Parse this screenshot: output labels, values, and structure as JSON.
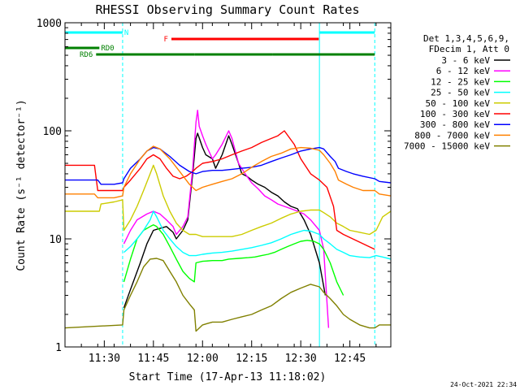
{
  "chart_data": {
    "type": "line",
    "title": "RHESSI Observing Summary Count Rates",
    "xlabel": "Start Time (17-Apr-13 11:18:02)",
    "ylabel": "Count Rate (s⁻¹ detector⁻¹)",
    "y_scale": "log",
    "ylim": [
      1,
      1000
    ],
    "y_ticks": [
      1,
      10,
      100,
      1000
    ],
    "y_tick_labels": [
      "1",
      "10",
      "100",
      "1000"
    ],
    "x_unit": "minutes since 11:18:02",
    "xlim": [
      0,
      99.5
    ],
    "x_ticks": [
      12,
      27,
      42,
      57,
      72,
      87
    ],
    "x_tick_labels": [
      "11:30",
      "11:45",
      "12:00",
      "12:15",
      "12:30",
      "12:45"
    ],
    "legend_location": "right",
    "legend_header": [
      "Det 1,3,4,5,6,9,",
      "FDecim 1, Att 0"
    ],
    "timestamp": "24-Oct-2021 22:34",
    "background_windows": [
      [
        0,
        17.6
      ],
      [
        77.7,
        94.6
      ]
    ],
    "flags": [
      {
        "label": "N",
        "color": "#00ffff",
        "segments": [
          [
            0,
            17.6
          ],
          [
            77.7,
            94.6
          ]
        ]
      },
      {
        "label": "F",
        "color": "#ff0000",
        "segments": [
          [
            32.5,
            77.5
          ]
        ]
      },
      {
        "label": "RD0",
        "color": "#008000",
        "segments": [
          [
            0,
            10.5
          ]
        ]
      },
      {
        "label": "RD6",
        "color": "#008000",
        "segments": [
          [
            9.5,
            39.5
          ],
          [
            39.5,
            63.5
          ],
          [
            63.5,
            84
          ],
          [
            84,
            94.6
          ]
        ]
      }
    ],
    "series": [
      {
        "name": "3 - 6 keV",
        "color": "#000000",
        "x": [
          0,
          17.6,
          18,
          20,
          23,
          25,
          27,
          29,
          31,
          33,
          34,
          36,
          37.5,
          39,
          40,
          40.5,
          42,
          43,
          45,
          46,
          48,
          50,
          51,
          53,
          54,
          55.5,
          57,
          59,
          61,
          63,
          65,
          67,
          69,
          71,
          73,
          75,
          77.7,
          79.5
        ],
        "y": [
          null,
          null,
          2.3,
          3.4,
          6,
          9,
          12,
          12.5,
          13,
          11.5,
          10,
          12,
          15,
          40,
          85,
          95,
          70,
          60,
          55,
          45,
          60,
          90,
          75,
          50,
          40,
          38,
          35,
          32,
          30,
          27,
          25,
          22,
          20,
          19,
          15,
          11,
          6,
          3
        ]
      },
      {
        "name": "6 - 12 keV",
        "color": "#ff00ff",
        "x": [
          0,
          17.6,
          18,
          20,
          22,
          25,
          27,
          29,
          31,
          33,
          34,
          36,
          37.5,
          39,
          40,
          40.5,
          41,
          42,
          43,
          45,
          46,
          48,
          50,
          51,
          53,
          55,
          57,
          59,
          61,
          63,
          65,
          67,
          69,
          71,
          73,
          75,
          77.7,
          79,
          80.5,
          94.6
        ],
        "y": [
          null,
          null,
          9,
          12,
          15,
          17,
          18,
          17,
          15,
          13,
          11,
          13,
          16,
          45,
          120,
          155,
          110,
          90,
          75,
          55,
          60,
          75,
          100,
          85,
          50,
          40,
          33,
          29,
          25,
          23,
          21,
          20,
          19,
          18,
          17,
          15,
          12,
          8,
          1.5,
          null
        ]
      },
      {
        "name": "12 - 25 keV",
        "color": "#00ff00",
        "x": [
          0,
          17.6,
          18,
          20,
          22,
          24,
          26,
          27,
          28,
          30,
          32,
          34,
          36,
          38,
          39.5,
          40,
          42,
          45,
          48,
          50,
          53,
          56,
          58,
          60,
          62,
          64,
          66,
          68,
          70,
          72,
          74,
          76,
          77.7,
          79,
          81,
          83,
          85,
          94.6
        ],
        "y": [
          null,
          null,
          4,
          6.5,
          10,
          12,
          13,
          13.5,
          13,
          11,
          8.5,
          6.5,
          5,
          4.3,
          4,
          6,
          6.2,
          6.3,
          6.3,
          6.5,
          6.6,
          6.7,
          6.8,
          7,
          7.2,
          7.5,
          8,
          8.5,
          9,
          9.5,
          9.7,
          9.5,
          9,
          8,
          6,
          4,
          3,
          null
        ]
      },
      {
        "name": "25 - 50 keV",
        "color": "#00ffff",
        "x": [
          0,
          17.6,
          18,
          20,
          22,
          24,
          26,
          27,
          28,
          30,
          32,
          34,
          36,
          38,
          40,
          42,
          45,
          48,
          51,
          54,
          57,
          60,
          63,
          66,
          69,
          71,
          73,
          75,
          77.7,
          79,
          81,
          83,
          85,
          87,
          90,
          93,
          95,
          97,
          99.5
        ],
        "y": [
          null,
          null,
          7.5,
          8.5,
          10,
          12,
          15,
          18,
          16,
          12,
          10,
          8.5,
          7.5,
          7,
          7,
          7.2,
          7.4,
          7.5,
          7.7,
          8,
          8.3,
          8.7,
          9.2,
          10,
          11,
          11.5,
          12,
          11.8,
          11,
          10,
          9,
          8,
          7.5,
          7,
          6.8,
          6.7,
          7,
          6.8,
          6.5
        ]
      },
      {
        "name": "50 - 100 keV",
        "color": "#cccc00",
        "x": [
          0,
          10.5,
          11,
          15,
          17.6,
          18,
          20,
          22,
          24,
          26,
          27,
          28,
          30,
          32,
          34,
          36,
          38,
          40,
          42,
          45,
          48,
          51,
          54,
          57,
          60,
          63,
          66,
          69,
          72,
          75,
          77.7,
          79,
          81,
          83,
          85,
          87,
          90,
          93,
          95,
          97,
          99.5
        ],
        "y": [
          18,
          18,
          21,
          22,
          23,
          12,
          15,
          20,
          28,
          40,
          48,
          40,
          25,
          18,
          14,
          12,
          11,
          11,
          10.5,
          10.5,
          10.5,
          10.5,
          11,
          12,
          13,
          14,
          15.5,
          17,
          18,
          18.5,
          18.5,
          17.5,
          16,
          14,
          13,
          12,
          11.5,
          11,
          12,
          16,
          18
        ]
      },
      {
        "name": "100 - 300 keV",
        "color": "#ff0000",
        "x": [
          0,
          9,
          10,
          15,
          17.6,
          18,
          20,
          23,
          25,
          27,
          29,
          31,
          33,
          35,
          37,
          39,
          40,
          42,
          45,
          48,
          51,
          54,
          57,
          60,
          63,
          65,
          67,
          70,
          72,
          75,
          77.7,
          80,
          82,
          83,
          85,
          94.6
        ],
        "y": [
          48,
          48,
          28,
          28,
          28,
          30,
          35,
          45,
          55,
          60,
          55,
          45,
          38,
          36,
          38,
          42,
          45,
          50,
          52,
          55,
          60,
          65,
          70,
          78,
          85,
          90,
          100,
          75,
          55,
          40,
          35,
          30,
          20,
          12,
          11,
          8
        ]
      },
      {
        "name": "300 - 800 keV",
        "color": "#0000ff",
        "x": [
          0,
          10,
          11,
          15,
          17.6,
          18,
          20,
          23,
          25,
          27,
          29,
          32,
          35,
          38,
          40,
          42,
          45,
          48,
          51,
          54,
          57,
          60,
          63,
          66,
          69,
          72,
          75,
          77.7,
          79,
          81,
          82.5,
          83.5,
          86,
          88,
          91,
          94.6,
          96,
          99.5
        ],
        "y": [
          35,
          35,
          32,
          32,
          33,
          36,
          45,
          55,
          65,
          70,
          68,
          58,
          48,
          42,
          40,
          42,
          43,
          43,
          44,
          45,
          46,
          48,
          52,
          56,
          60,
          65,
          68,
          70,
          68,
          58,
          52,
          45,
          42,
          40,
          38,
          36,
          34,
          33
        ]
      },
      {
        "name": "800 - 7000 keV",
        "color": "#ff8000",
        "x": [
          0,
          9,
          10,
          15,
          17.6,
          18,
          20,
          23,
          25,
          27,
          29,
          32,
          35,
          38,
          40,
          42,
          45,
          48,
          51,
          54,
          57,
          60,
          63,
          66,
          69,
          72,
          75,
          77.7,
          79,
          81,
          82.5,
          83.5,
          86,
          88,
          91,
          94.6,
          96,
          99.5
        ],
        "y": [
          26,
          26,
          24,
          24,
          25,
          30,
          40,
          55,
          65,
          72,
          68,
          55,
          42,
          32,
          28,
          30,
          32,
          34,
          36,
          40,
          46,
          52,
          58,
          62,
          68,
          70,
          69,
          66,
          60,
          50,
          42,
          35,
          32,
          30,
          28,
          28,
          26,
          25
        ]
      },
      {
        "name": "7000 - 15000 keV",
        "color": "#808000",
        "x": [
          0,
          17.6,
          18,
          20,
          22,
          24,
          26,
          28,
          30,
          32,
          34,
          36,
          38,
          39.5,
          40,
          42,
          45,
          48,
          51,
          54,
          57,
          60,
          63,
          66,
          69,
          72,
          75,
          77.7,
          79,
          81,
          83,
          85,
          87,
          90,
          93,
          94.6,
          96,
          99.5
        ],
        "y": [
          1.5,
          1.6,
          2.2,
          3,
          4,
          5.5,
          6.5,
          6.6,
          6.3,
          5,
          4,
          3,
          2.5,
          2.2,
          1.4,
          1.6,
          1.7,
          1.7,
          1.8,
          1.9,
          2,
          2.2,
          2.4,
          2.8,
          3.2,
          3.5,
          3.8,
          3.6,
          3.2,
          2.8,
          2.4,
          2,
          1.8,
          1.6,
          1.5,
          1.5,
          1.6,
          1.6
        ]
      }
    ]
  }
}
